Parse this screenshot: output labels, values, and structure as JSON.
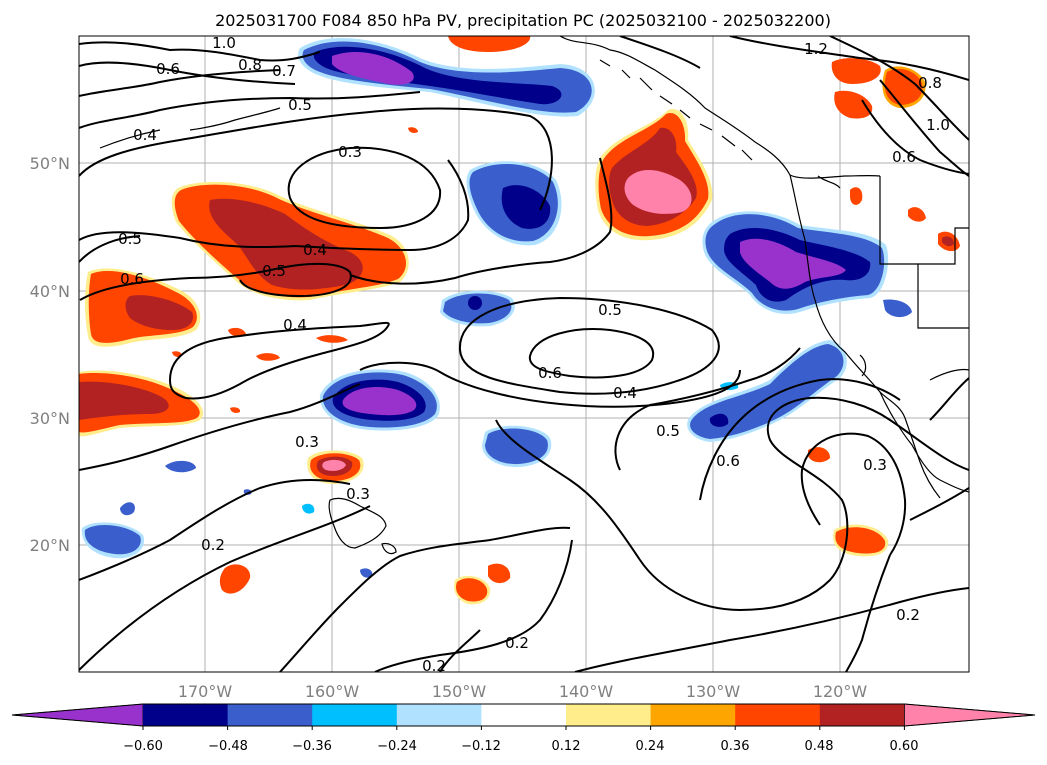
{
  "title": "2025031700 F084 850 hPa PV, precipitation PC (2025032100 - 2025032200)",
  "latitude_labels": [
    "50°N",
    "40°N",
    "30°N",
    "20°N"
  ],
  "longitude_labels": [
    "170°W",
    "160°W",
    "150°W",
    "140°W",
    "130°W",
    "120°W"
  ],
  "colorbar": {
    "ticks": [
      "−0.60",
      "−0.48",
      "−0.36",
      "−0.24",
      "−0.12",
      "0.12",
      "0.24",
      "0.36",
      "0.48",
      "0.60"
    ],
    "colors": [
      "#9932cc",
      "#00008b",
      "#3a5fcd",
      "#00bfff",
      "#b0e2ff",
      "#ffffff",
      "#ffec8b",
      "#ffa500",
      "#ff4500",
      "#b22222",
      "#ff82ab"
    ]
  },
  "contour_labels": [
    "1.0",
    "0.8",
    "0.7",
    "0.6",
    "0.5",
    "0.4",
    "1.2",
    "0.8",
    "1.0",
    "0.6",
    "0.3",
    "0.5",
    "0.4",
    "0.5",
    "0.6",
    "0.4",
    "0.5",
    "0.6",
    "0.4",
    "0.3",
    "0.5",
    "0.6",
    "0.3",
    "0.3",
    "0.2",
    "0.2",
    "0.2",
    "0.2"
  ]
}
